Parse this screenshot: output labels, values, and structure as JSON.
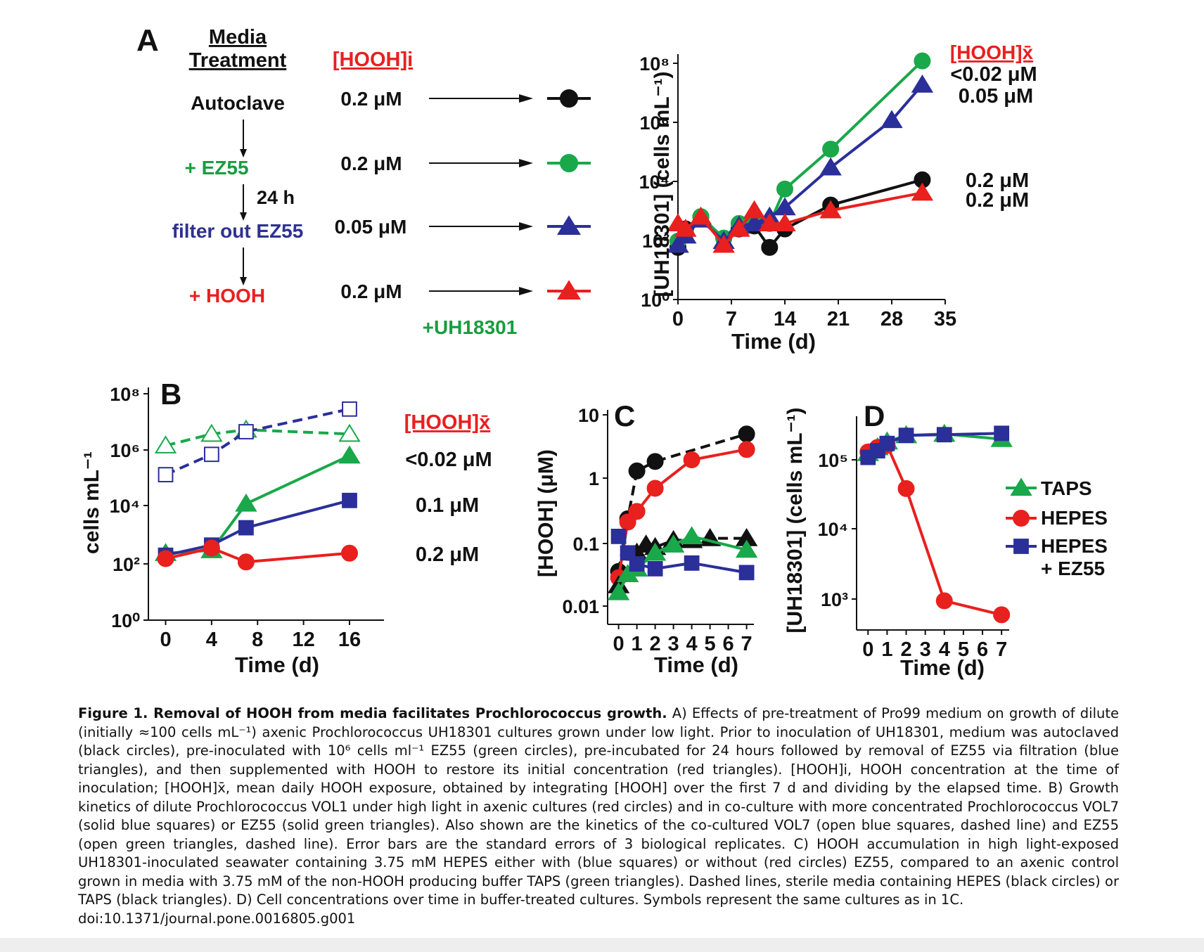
{
  "colors": {
    "black": "#111111",
    "green": "#19a84a",
    "blue": "#2b2f9a",
    "red": "#e8201e",
    "treat_green": "#1a9c40",
    "treat_blue": "#2e3192"
  },
  "panelA": {
    "letter": "A",
    "col_media_1": "Media",
    "col_media_2": "Treatment",
    "col_hooh_i": "[HOOH]i",
    "steps": [
      {
        "label": "Autoclave",
        "conc": "0.2 μM",
        "color": "black"
      },
      {
        "label": "+ EZ55",
        "conc": "0.2 μM",
        "color": "green"
      },
      {
        "label": "filter out EZ55",
        "conc": "0.05 μM",
        "color": "blue"
      },
      {
        "label": "+ HOOH",
        "conc": "0.2 μM",
        "color": "red"
      }
    ],
    "time_label": "24 h",
    "inoculation_label": "+UH18301",
    "legend_title": "[HOOH]x̄",
    "legend_values": [
      "<0.02 μM",
      "0.05 μM",
      "0.2 μM",
      "0.2 μM"
    ]
  },
  "panelB": {
    "letter": "B",
    "legend_title": "[HOOH]x̄",
    "legend_values": [
      "<0.02 μM",
      "0.1 μM",
      "0.2 μM"
    ]
  },
  "panelC": {
    "letter": "C"
  },
  "panelD": {
    "letter": "D",
    "legend": [
      "TAPS",
      "HEPES",
      "HEPES",
      "+ EZ55"
    ]
  },
  "chart_data": [
    {
      "panel": "A",
      "type": "line",
      "xlabel": "Time (d)",
      "ylabel": "[UH18301] (cells mL⁻¹)",
      "xlim": [
        0,
        35
      ],
      "ylim": [
        1,
        100000000
      ],
      "yscale": "log",
      "xticks": [
        0,
        7,
        14,
        21,
        28,
        35
      ],
      "yticks": [
        "10⁰",
        "10²",
        "10⁴",
        "10⁶",
        "10⁸"
      ],
      "series": [
        {
          "color": "black",
          "marker": "circle",
          "x": [
            0,
            1,
            3,
            6,
            8,
            10,
            12,
            14,
            20,
            32
          ],
          "y": [
            50,
            200,
            500,
            100,
            200,
            250,
            50,
            200,
            1200,
            8000
          ]
        },
        {
          "color": "green",
          "marker": "circle",
          "x": [
            0,
            1,
            3,
            6,
            8,
            10,
            12,
            14,
            20,
            32
          ],
          "y": [
            80,
            150,
            500,
            100,
            300,
            400,
            300,
            4000,
            80000,
            60000000
          ]
        },
        {
          "color": "blue",
          "marker": "triangle",
          "x": [
            0,
            1,
            3,
            6,
            8,
            10,
            12,
            14,
            20,
            28,
            32
          ],
          "y": [
            60,
            120,
            400,
            80,
            250,
            300,
            500,
            1000,
            20000,
            700000,
            10000000
          ]
        },
        {
          "color": "red",
          "marker": "triangle",
          "x": [
            0,
            1,
            3,
            6,
            8,
            10,
            12,
            14,
            20,
            32
          ],
          "y": [
            300,
            200,
            500,
            60,
            200,
            800,
            300,
            300,
            800,
            3000
          ]
        }
      ]
    },
    {
      "panel": "B",
      "type": "line",
      "xlabel": "Time (d)",
      "ylabel": "cells mL⁻¹",
      "xlim": [
        -1.5,
        19
      ],
      "ylim": [
        1,
        100000000
      ],
      "yscale": "log",
      "xticks": [
        0,
        4,
        8,
        12,
        16
      ],
      "yticks": [
        "10⁰",
        "10²",
        "10⁴",
        "10⁶",
        "10⁸"
      ],
      "series": [
        {
          "color": "green",
          "marker": "triangle-open",
          "dashed": true,
          "x": [
            0,
            4,
            7,
            16
          ],
          "y": [
            1000000,
            2500000,
            3500000,
            2500000
          ]
        },
        {
          "color": "blue",
          "marker": "square-open",
          "dashed": true,
          "x": [
            0,
            4,
            7,
            16
          ],
          "y": [
            100000,
            500000,
            3000000,
            18000000
          ]
        },
        {
          "color": "green",
          "marker": "triangle",
          "x": [
            0,
            4,
            7,
            16
          ],
          "y": [
            200,
            250,
            10000,
            450000
          ]
        },
        {
          "color": "blue",
          "marker": "square",
          "x": [
            0,
            4,
            7,
            16
          ],
          "y": [
            170,
            380,
            1500,
            13000
          ]
        },
        {
          "color": "red",
          "marker": "circle",
          "x": [
            0,
            4,
            7,
            16
          ],
          "y": [
            130,
            300,
            100,
            200
          ]
        }
      ]
    },
    {
      "panel": "C",
      "type": "line",
      "xlabel": "Time (d)",
      "ylabel": "[HOOH] (μM)",
      "xlim": [
        -0.6,
        7.4
      ],
      "ylim": [
        0.01,
        10
      ],
      "yscale": "log",
      "xticks": [
        0,
        1,
        2,
        3,
        4,
        5,
        6,
        7
      ],
      "yticks": [
        "0.01",
        "0.1",
        "1",
        "10"
      ],
      "series": [
        {
          "color": "black",
          "marker": "circle",
          "dashed": true,
          "x": [
            0,
            0.5,
            1,
            2,
            7
          ],
          "y": [
            0.055,
            0.3,
            1.4,
            1.9,
            4.6
          ]
        },
        {
          "color": "red",
          "marker": "circle",
          "x": [
            0,
            0.5,
            1,
            2,
            4,
            7
          ],
          "y": [
            0.045,
            0.27,
            0.38,
            0.8,
            2,
            2.8
          ]
        },
        {
          "color": "black",
          "marker": "triangle",
          "dashed": true,
          "x": [
            0,
            0.5,
            1,
            1.5,
            2,
            3,
            4,
            5,
            7
          ],
          "y": [
            0.035,
            0.05,
            0.1,
            0.13,
            0.12,
            0.15,
            0.15,
            0.16,
            0.16
          ]
        },
        {
          "color": "green",
          "marker": "triangle",
          "x": [
            0,
            0.5,
            1,
            2,
            3,
            4,
            7
          ],
          "y": [
            0.028,
            0.05,
            0.06,
            0.1,
            0.13,
            0.17,
            0.11
          ]
        },
        {
          "color": "blue",
          "marker": "square",
          "x": [
            0,
            0.5,
            1,
            2,
            4,
            7
          ],
          "y": [
            0.17,
            0.1,
            0.07,
            0.06,
            0.072,
            0.053
          ]
        }
      ]
    },
    {
      "panel": "D",
      "type": "line",
      "xlabel": "Time (d)",
      "ylabel": "[UH18301] (cells mL⁻¹)",
      "xlim": [
        -0.6,
        7.4
      ],
      "ylim": [
        300,
        400000
      ],
      "yscale": "log",
      "xticks": [
        0,
        1,
        2,
        3,
        4,
        5,
        6,
        7
      ],
      "yticks": [
        "10³",
        "10⁴",
        "10⁵"
      ],
      "series": [
        {
          "name": "TAPS",
          "color": "green",
          "marker": "triangle",
          "x": [
            0,
            0.5,
            1,
            2,
            4,
            7
          ],
          "y": [
            115000,
            140000,
            170000,
            210000,
            220000,
            185000
          ]
        },
        {
          "name": "HEPES",
          "color": "red",
          "marker": "circle",
          "x": [
            0,
            0.5,
            1,
            2,
            4,
            7
          ],
          "y": [
            120000,
            140000,
            150000,
            35000,
            800,
            500
          ]
        },
        {
          "name": "HEPES + EZ55",
          "color": "blue",
          "marker": "square",
          "x": [
            0,
            0.5,
            1,
            2,
            4,
            7
          ],
          "y": [
            100000,
            125000,
            160000,
            210000,
            215000,
            225000
          ]
        }
      ]
    }
  ],
  "caption": {
    "title": "Figure 1. Removal of HOOH from media facilitates Prochlorococcus growth.",
    "text": " A) Effects of pre-treatment of Pro99 medium on growth of dilute (initially ≈100 cells mL⁻¹) axenic Prochlorococcus UH18301 cultures grown under low light. Prior to inoculation of UH18301, medium was autoclaved (black circles), pre-inoculated with 10⁶ cells ml⁻¹ EZ55 (green circles), pre-incubated for 24 hours followed by removal of EZ55 via filtration (blue triangles), and then supplemented with HOOH to restore its initial concentration (red triangles). [HOOH]i, HOOH concentration at the time of inoculation; [HOOH]x̄, mean daily HOOH exposure, obtained by integrating [HOOH] over the first 7 d and dividing by the elapsed time. B) Growth kinetics of dilute Prochlorococcus VOL1 under high light in axenic cultures (red circles) and in co-culture with more concentrated Prochlorococcus VOL7 (solid blue squares) or EZ55 (solid green triangles). Also shown are the kinetics of the co-cultured VOL7 (open blue squares, dashed line) and EZ55 (open green triangles, dashed line). Error bars are the standard errors of 3 biological replicates. C) HOOH accumulation in high light-exposed UH18301-inoculated seawater containing 3.75 mM HEPES either with (blue squares) or without (red circles) EZ55, compared to an axenic control grown in media with 3.75 mM of the non-HOOH producing buffer TAPS (green triangles). Dashed lines, sterile media containing HEPES (black circles) or TAPS (black triangles). D) Cell concentrations over time in buffer-treated cultures. Symbols represent the same cultures as in 1C.",
    "doi": "doi:10.1371/journal.pone.0016805.g001"
  }
}
